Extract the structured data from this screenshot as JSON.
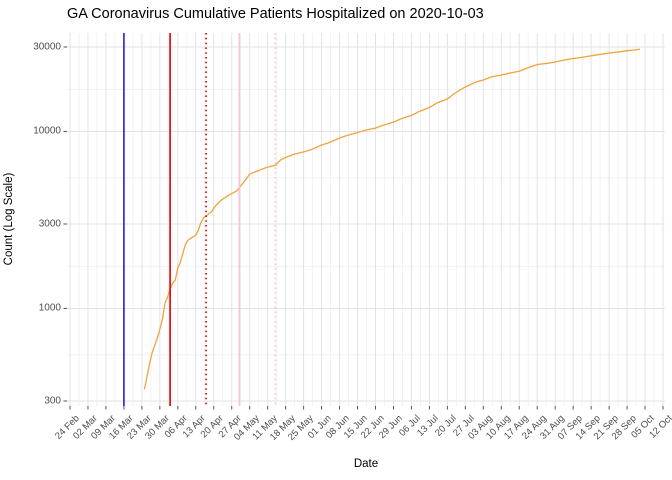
{
  "title": "GA Coronavirus Cumulative Patients Hospitalized on 2020-10-03",
  "x_axis": {
    "label": "Date",
    "tick_labels": [
      "24 Feb",
      "02 Mar",
      "09 Mar",
      "16 Mar",
      "23 Mar",
      "30 Mar",
      "06 Apr",
      "13 Apr",
      "20 Apr",
      "27 Apr",
      "04 May",
      "11 May",
      "18 May",
      "25 May",
      "01 Jun",
      "08 Jun",
      "15 Jun",
      "22 Jun",
      "29 Jun",
      "06 Jul",
      "13 Jul",
      "20 Jul",
      "27 Jul",
      "03 Aug",
      "10 Aug",
      "17 Aug",
      "24 Aug",
      "31 Aug",
      "07 Sep",
      "14 Sep",
      "21 Sep",
      "28 Sep",
      "05 Oct",
      "12 Oct"
    ],
    "domain": [
      "2020-02-24",
      "2020-10-12"
    ]
  },
  "y_axis": {
    "label": "Count (Log Scale)",
    "tick_labels": [
      "300",
      "1000",
      "3000",
      "10000",
      "30000"
    ],
    "tick_values": [
      300,
      1000,
      3000,
      10000,
      30000
    ],
    "scale": "log10"
  },
  "colors": {
    "series": "#f0a33c",
    "grid_major": "#e3e3e3",
    "grid_minor": "#efefef",
    "tick_mark": "#555555",
    "axis_text": "#4d4d4d",
    "title_text": "#000000",
    "background": "#ffffff",
    "vline_blue": "#2222d2",
    "vline_red": "#e00000",
    "vline_pink": "#f7c3cd"
  },
  "chart_data": {
    "type": "line",
    "title": "GA Coronavirus Cumulative Patients Hospitalized on 2020-10-03",
    "xlabel": "Date",
    "ylabel": "Count (Log Scale)",
    "y_scale": "log10",
    "ylim": [
      281,
      36000
    ],
    "x_range": [
      "2020-02-24",
      "2020-10-12"
    ],
    "grid": true,
    "legend": "none",
    "vlines": [
      {
        "x": "2020-03-16",
        "color": "#2222d2",
        "linetype": "solid"
      },
      {
        "x": "2020-04-03",
        "color": "#e00000",
        "linetype": "solid"
      },
      {
        "x": "2020-04-17",
        "color": "#e00000",
        "linetype": "dotted"
      },
      {
        "x": "2020-04-30",
        "color": "#f7c3cd",
        "linetype": "solid"
      },
      {
        "x": "2020-05-14",
        "color": "#f7c3cd",
        "linetype": "dotted"
      }
    ],
    "series": [
      {
        "name": "cumulative-patients-hospitalized",
        "color": "#f0a33c",
        "points": [
          [
            "2020-03-24",
            350
          ],
          [
            "2020-03-25",
            410
          ],
          [
            "2020-03-26",
            490
          ],
          [
            "2020-03-27",
            560
          ],
          [
            "2020-03-28",
            620
          ],
          [
            "2020-03-29",
            680
          ],
          [
            "2020-03-30",
            760
          ],
          [
            "2020-03-31",
            870
          ],
          [
            "2020-04-01",
            1070
          ],
          [
            "2020-04-02",
            1160
          ],
          [
            "2020-04-03",
            1290
          ],
          [
            "2020-04-04",
            1390
          ],
          [
            "2020-04-05",
            1450
          ],
          [
            "2020-04-06",
            1690
          ],
          [
            "2020-04-07",
            1830
          ],
          [
            "2020-04-08",
            2060
          ],
          [
            "2020-04-09",
            2310
          ],
          [
            "2020-04-10",
            2430
          ],
          [
            "2020-04-11",
            2490
          ],
          [
            "2020-04-12",
            2540
          ],
          [
            "2020-04-13",
            2600
          ],
          [
            "2020-04-14",
            2770
          ],
          [
            "2020-04-15",
            3060
          ],
          [
            "2020-04-16",
            3240
          ],
          [
            "2020-04-17",
            3330
          ],
          [
            "2020-04-18",
            3420
          ],
          [
            "2020-04-19",
            3500
          ],
          [
            "2020-04-20",
            3690
          ],
          [
            "2020-04-21",
            3840
          ],
          [
            "2020-04-23",
            4100
          ],
          [
            "2020-04-26",
            4380
          ],
          [
            "2020-04-29",
            4620
          ],
          [
            "2020-05-02",
            5250
          ],
          [
            "2020-05-04",
            5740
          ],
          [
            "2020-05-07",
            5980
          ],
          [
            "2020-05-11",
            6300
          ],
          [
            "2020-05-14",
            6430
          ],
          [
            "2020-05-16",
            6900
          ],
          [
            "2020-05-18",
            7130
          ],
          [
            "2020-05-21",
            7410
          ],
          [
            "2020-05-25",
            7660
          ],
          [
            "2020-05-28",
            7900
          ],
          [
            "2020-06-01",
            8380
          ],
          [
            "2020-06-04",
            8650
          ],
          [
            "2020-06-08",
            9180
          ],
          [
            "2020-06-11",
            9500
          ],
          [
            "2020-06-15",
            9860
          ],
          [
            "2020-06-18",
            10150
          ],
          [
            "2020-06-22",
            10450
          ],
          [
            "2020-06-25",
            10850
          ],
          [
            "2020-06-29",
            11300
          ],
          [
            "2020-07-02",
            11800
          ],
          [
            "2020-07-06",
            12300
          ],
          [
            "2020-07-09",
            12950
          ],
          [
            "2020-07-13",
            13650
          ],
          [
            "2020-07-16",
            14500
          ],
          [
            "2020-07-20",
            15250
          ],
          [
            "2020-07-23",
            16480
          ],
          [
            "2020-07-27",
            17820
          ],
          [
            "2020-07-31",
            19000
          ],
          [
            "2020-08-03",
            19540
          ],
          [
            "2020-08-06",
            20300
          ],
          [
            "2020-08-10",
            20830
          ],
          [
            "2020-08-13",
            21300
          ],
          [
            "2020-08-17",
            21900
          ],
          [
            "2020-08-20",
            22800
          ],
          [
            "2020-08-24",
            23880
          ],
          [
            "2020-08-28",
            24260
          ],
          [
            "2020-08-31",
            24670
          ],
          [
            "2020-09-04",
            25400
          ],
          [
            "2020-09-07",
            25830
          ],
          [
            "2020-09-11",
            26300
          ],
          [
            "2020-09-14",
            26750
          ],
          [
            "2020-09-18",
            27300
          ],
          [
            "2020-09-21",
            27750
          ],
          [
            "2020-09-25",
            28200
          ],
          [
            "2020-09-28",
            28580
          ],
          [
            "2020-10-01",
            28900
          ],
          [
            "2020-10-03",
            29200
          ]
        ]
      }
    ]
  }
}
